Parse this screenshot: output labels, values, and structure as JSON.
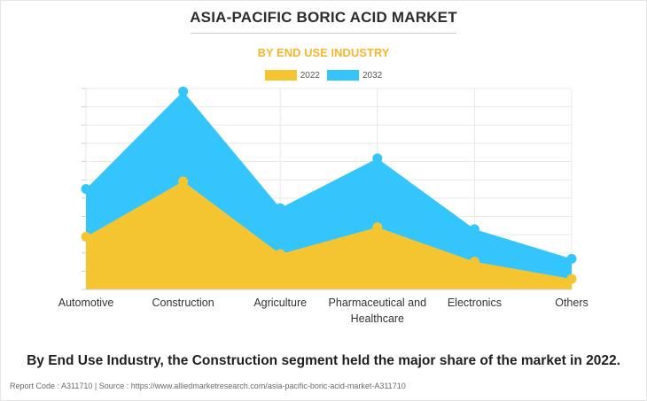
{
  "title": "ASIA-PACIFIC BORIC ACID MARKET",
  "subtitle": "BY END USE INDUSTRY",
  "colors": {
    "series_2022": "#f5c531",
    "series_2032": "#33c5fc",
    "title": "#2d2d2d",
    "subtitle": "#f5b72b"
  },
  "chart_data": {
    "type": "area",
    "categories": [
      "Automotive",
      "Construction",
      "Agriculture",
      "Pharmaceutical and Healthcare",
      "Electronics",
      "Others"
    ],
    "series": [
      {
        "name": "2022",
        "values": [
          27.5,
          56.5,
          18.5,
          32.5,
          14.5,
          5.5
        ]
      },
      {
        "name": "2032",
        "values": [
          52.5,
          103.5,
          42.5,
          68.5,
          31.5,
          16.0
        ]
      }
    ],
    "ylim": [
      0,
      105
    ],
    "grid": true,
    "legend_position": "top-center",
    "y_tick_labels_shown": false
  },
  "footnote": "By End Use Industry, the Construction segment held the major share of the market in 2022.",
  "source": "Report Code : A311710  |  Source : https://www.alliedmarketresearch.com/asia-pacific-boric-acid-market-A311710"
}
